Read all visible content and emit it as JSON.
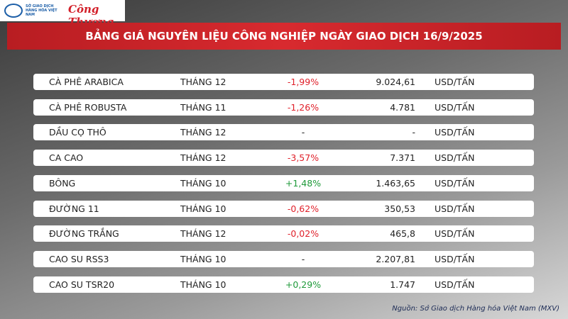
{
  "header": {
    "logo_text": "SỞ GIAO DỊCH HÀNG HÓA VIỆT NAM",
    "brand": "Công Thương",
    "title": "BẢNG GIÁ NGUYÊN LIỆU CÔNG NGHIỆP NGÀY GIAO DỊCH 16/9/2025"
  },
  "table": {
    "rows": [
      {
        "name": "CÀ PHÊ ARABICA",
        "month": "THÁNG 12",
        "change": "-1,99%",
        "change_color": "#e0202a",
        "price": "9.024,61",
        "unit": "USD/TẤN"
      },
      {
        "name": "CÀ PHÊ ROBUSTA",
        "month": "THÁNG 11",
        "change": "-1,26%",
        "change_color": "#e0202a",
        "price": "4.781",
        "unit": "USD/TẤN"
      },
      {
        "name": "DẦU CỌ THÔ",
        "month": "THÁNG 12",
        "change": "-",
        "change_color": "#222222",
        "price": "-",
        "unit": "USD/TẤN"
      },
      {
        "name": "CA CAO",
        "month": "THÁNG 12",
        "change": "-3,57%",
        "change_color": "#e0202a",
        "price": "7.371",
        "unit": "USD/TẤN"
      },
      {
        "name": "BÔNG",
        "month": "THÁNG 10",
        "change": "+1,48%",
        "change_color": "#1f9a3a",
        "price": "1.463,65",
        "unit": "USD/TẤN"
      },
      {
        "name": "ĐƯỜNG 11",
        "month": "THÁNG 10",
        "change": "-0,62%",
        "change_color": "#e0202a",
        "price": "350,53",
        "unit": "USD/TẤN"
      },
      {
        "name": "ĐƯỜNG TRẮNG",
        "month": "THÁNG 12",
        "change": "-0,02%",
        "change_color": "#e0202a",
        "price": "465,8",
        "unit": "USD/TẤN"
      },
      {
        "name": "CAO SU RSS3",
        "month": "THÁNG 10",
        "change": "-",
        "change_color": "#222222",
        "price": "2.207,81",
        "unit": "USD/TẤN"
      },
      {
        "name": "CAO SU TSR20",
        "month": "THÁNG 10",
        "change": "+0,29%",
        "change_color": "#1f9a3a",
        "price": "1.747",
        "unit": "USD/TẤN"
      }
    ]
  },
  "footer": {
    "source": "Nguồn: Sở Giao dịch Hàng hóa Việt Nam (MXV)"
  }
}
